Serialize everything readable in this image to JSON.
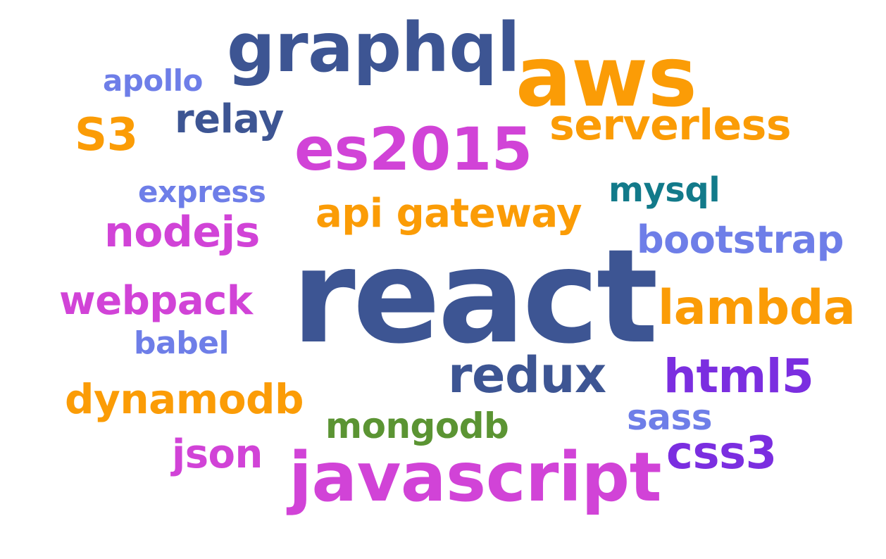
{
  "colors": {
    "navy": "#3d5593",
    "orange": "#fb9c06",
    "magenta": "#d143d7",
    "periwinkle": "#6e7ee8",
    "teal": "#127a8a",
    "purple": "#7b2ee0",
    "green": "#5b9433"
  },
  "words": {
    "graphql": "graphql",
    "aws": "aws",
    "apollo": "apollo",
    "relay": "relay",
    "s3": "S3",
    "serverless": "serverless",
    "es2015": "es2015",
    "express": "express",
    "mysql": "mysql",
    "api_gateway": "api gateway",
    "nodejs": "nodejs",
    "bootstrap": "bootstrap",
    "react": "react",
    "lambda": "lambda",
    "webpack": "webpack",
    "babel": "babel",
    "redux": "redux",
    "html5": "html5",
    "dynamodb": "dynamodb",
    "sass": "sass",
    "mongodb": "mongodb",
    "json": "json",
    "css3": "css3",
    "javascript": "javascript"
  },
  "word_colors": {
    "graphql": "navy",
    "aws": "orange",
    "apollo": "periwinkle",
    "relay": "navy",
    "s3": "orange",
    "serverless": "orange",
    "es2015": "magenta",
    "express": "periwinkle",
    "mysql": "teal",
    "api_gateway": "orange",
    "nodejs": "magenta",
    "bootstrap": "periwinkle",
    "react": "navy",
    "lambda": "orange",
    "webpack": "magenta",
    "babel": "periwinkle",
    "redux": "navy",
    "html5": "purple",
    "dynamodb": "orange",
    "sass": "periwinkle",
    "mongodb": "green",
    "json": "magenta",
    "css3": "purple",
    "javascript": "magenta"
  }
}
